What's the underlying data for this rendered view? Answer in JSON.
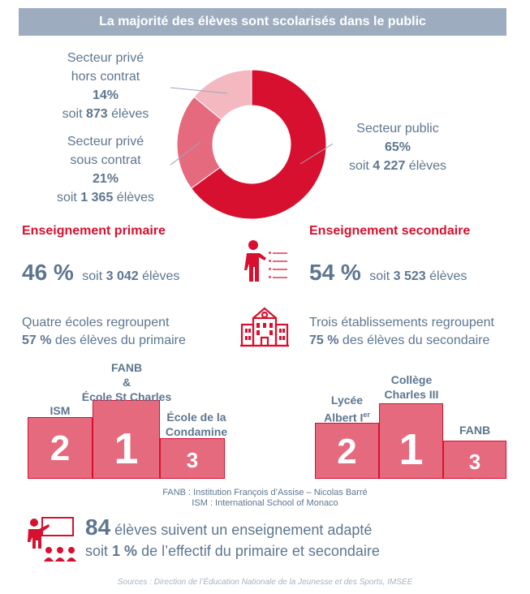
{
  "banner": {
    "title": "La majorité des élèves sont scolarisés dans le public"
  },
  "donut": {
    "slices": [
      {
        "name": "Secteur public",
        "percent": 65,
        "color": "#d7102f"
      },
      {
        "name": "Secteur privé sous contrat",
        "percent": 21,
        "color": "#e66a7d"
      },
      {
        "name": "Secteur privé hors contrat",
        "percent": 14,
        "color": "#f4b8c1"
      }
    ]
  },
  "labels": {
    "hors_contrat": {
      "line1": "Secteur privé",
      "line2": "hors contrat",
      "pct": "14%",
      "soit": "soit",
      "count": "873",
      "unit": "élèves"
    },
    "sous_contrat": {
      "line1": "Secteur privé",
      "line2": "sous contrat",
      "pct": "21%",
      "soit": "soit",
      "count": "1 365",
      "unit": "élèves"
    },
    "public": {
      "line1": "Secteur public",
      "pct": "65%",
      "soit": "soit",
      "count": "4 227",
      "unit": "élèves"
    }
  },
  "primaire": {
    "title": "Enseignement primaire",
    "pct": "46 %",
    "soit": "soit",
    "count": "3 042",
    "unit": "élèves",
    "desc_line1": "Quatre écoles regroupent",
    "desc_pct": "57 %",
    "desc_line2": "des élèves du primaire",
    "podium": {
      "first": {
        "rank": "1",
        "label_line1": "FANB",
        "label_line2": "&",
        "label_line3": "École St Charles"
      },
      "second": {
        "rank": "2",
        "label": "ISM"
      },
      "third": {
        "rank": "3",
        "label_line1": "École de la",
        "label_line2": "Condamine"
      }
    }
  },
  "secondaire": {
    "title": "Enseignement secondaire",
    "pct": "54 %",
    "soit": "soit",
    "count": "3 523",
    "unit": "élèves",
    "desc_line1": "Trois établissements regroupent",
    "desc_pct": "75 %",
    "desc_line2": "des élèves du secondaire",
    "podium": {
      "first": {
        "rank": "1",
        "label_line1": "Collège",
        "label_line2": "Charles III"
      },
      "second": {
        "rank": "2",
        "label_line1": "Lycée",
        "label_line2": "Albert I",
        "label_sup": "er"
      },
      "third": {
        "rank": "3",
        "label": "FANB"
      }
    }
  },
  "notes": {
    "fanb": "FANB : Institution François d’Assise – Nicolas Barré",
    "ism": "ISM : International School of Monaco"
  },
  "adapted": {
    "count": "84",
    "line1": "élèves suivent un enseignement adapté",
    "soit": "soit",
    "pct": "1 %",
    "line2": "de l’effectif du primaire et secondaire"
  },
  "source": "Sources : Direction de l’Éducation Nationale de la Jeunesse et des Sports, IMSEE",
  "colors": {
    "red": "#d7102f",
    "pink": "#e66a7d",
    "light_pink": "#f4b8c1",
    "slate": "#5d7690",
    "banner": "#9dadbf"
  },
  "icons": {
    "primaire": "teacher-board-icon",
    "secondaire": "school-building-icon",
    "adapted": "classroom-teacher-icon"
  }
}
